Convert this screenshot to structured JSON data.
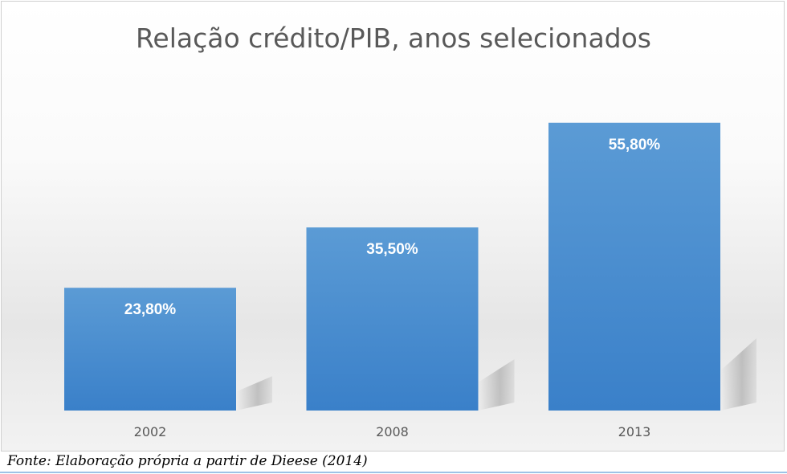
{
  "chart_data": {
    "type": "bar",
    "title": "Relação crédito/PIB, anos selecionados",
    "categories": [
      "2002",
      "2008",
      "2013"
    ],
    "values": [
      23.8,
      35.5,
      55.8
    ],
    "data_labels": [
      "23,80%",
      "35,50%",
      "55,80%"
    ],
    "ylim": [
      0,
      60
    ],
    "grid": false,
    "legend": "none",
    "bar_color": "#4a8fd2",
    "xlabel": "",
    "ylabel": ""
  },
  "source": "Fonte: Elaboração própria a partir de Dieese (2014)"
}
